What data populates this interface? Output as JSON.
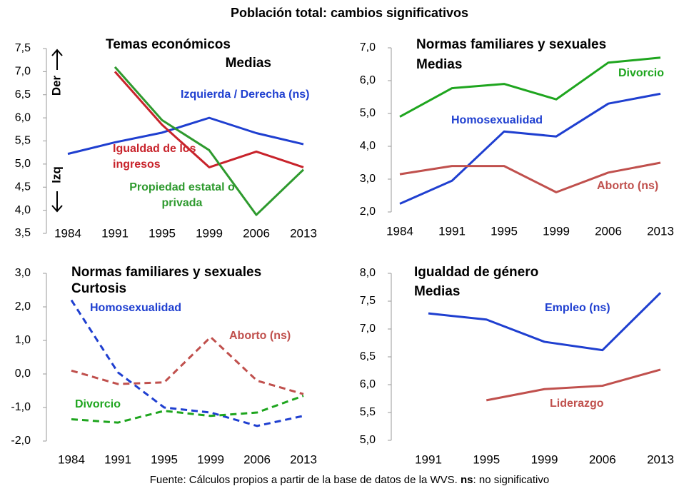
{
  "title": "Población total: cambios significativos",
  "source": [
    "Fuente: Cálculos propios a partir de la base de datos de la WVS. ",
    "ns",
    ": no significativo"
  ],
  "chart_data": [
    {
      "type": "line",
      "title": "Temas económicos",
      "subtitle": "Medias",
      "y_top_label": "Der",
      "y_bottom_label": "Izq",
      "categories": [
        "1984",
        "1991",
        "1995",
        "1999",
        "2006",
        "2013"
      ],
      "ylim": [
        3.5,
        7.5
      ],
      "yticks": [
        {
          "value": 3.5,
          "label": "3,5"
        },
        {
          "value": 4,
          "label": "4,0"
        },
        {
          "value": 4.5,
          "label": "4,5"
        },
        {
          "value": 5,
          "label": "5,0"
        },
        {
          "value": 5.5,
          "label": "5,5"
        },
        {
          "value": 6,
          "label": "6,0"
        },
        {
          "value": 6.5,
          "label": "6,5"
        },
        {
          "value": 7,
          "label": "7,0"
        },
        {
          "value": 7.5,
          "label": "7,5"
        }
      ],
      "dashed": false,
      "series": [
        {
          "name": "Izquierda / Derecha (ns)",
          "color": "#1f3fd0",
          "values": [
            5.22,
            5.47,
            5.68,
            6.0,
            5.67,
            5.43
          ]
        },
        {
          "name": "Igualdad de los ingresos",
          "color": "#c8232b",
          "values": [
            null,
            7.0,
            5.85,
            4.93,
            5.27,
            4.93
          ]
        },
        {
          "name": "Propiedad estatal o privada",
          "color": "#2e9a2e",
          "values": [
            null,
            7.1,
            5.95,
            5.3,
            3.9,
            4.88
          ]
        }
      ]
    },
    {
      "type": "line",
      "title": "Normas familiares y sexuales",
      "subtitle": "Medias",
      "categories": [
        "1984",
        "1991",
        "1995",
        "1999",
        "2006",
        "2013"
      ],
      "ylim": [
        2,
        7
      ],
      "yticks": [
        {
          "value": 2,
          "label": "2,0"
        },
        {
          "value": 3,
          "label": "3,0"
        },
        {
          "value": 4,
          "label": "4,0"
        },
        {
          "value": 5,
          "label": "5,0"
        },
        {
          "value": 6,
          "label": "6,0"
        },
        {
          "value": 7,
          "label": "7,0"
        }
      ],
      "dashed": false,
      "series": [
        {
          "name": "Divorcio",
          "color": "#1ea51e",
          "values": [
            4.9,
            5.77,
            5.9,
            5.43,
            6.55,
            6.7
          ]
        },
        {
          "name": "Homosexualidad",
          "color": "#1f3fd0",
          "values": [
            2.25,
            2.95,
            4.45,
            4.3,
            5.3,
            5.6
          ]
        },
        {
          "name": "Aborto (ns)",
          "color": "#c0504d",
          "values": [
            3.15,
            3.4,
            3.4,
            2.6,
            3.2,
            3.5
          ]
        }
      ]
    },
    {
      "type": "line",
      "title": "Normas familiares y sexuales",
      "subtitle": "Curtosis",
      "categories": [
        "1984",
        "1991",
        "1995",
        "1999",
        "2006",
        "2013"
      ],
      "ylim": [
        -2,
        3
      ],
      "yticks": [
        {
          "value": -2,
          "label": "-2,0"
        },
        {
          "value": -1,
          "label": "-1,0"
        },
        {
          "value": 0,
          "label": "0,0"
        },
        {
          "value": 1,
          "label": "1,0"
        },
        {
          "value": 2,
          "label": "2,0"
        },
        {
          "value": 3,
          "label": "3,0"
        }
      ],
      "dashed": true,
      "series": [
        {
          "name": "Homosexualidad",
          "color": "#1f3fd0",
          "values": [
            2.2,
            0.05,
            -1.0,
            -1.15,
            -1.55,
            -1.25
          ]
        },
        {
          "name": "Aborto (ns)",
          "color": "#c0504d",
          "values": [
            0.1,
            -0.3,
            -0.25,
            1.1,
            -0.2,
            -0.6
          ]
        },
        {
          "name": "Divorcio",
          "color": "#1ea51e",
          "values": [
            -1.35,
            -1.45,
            -1.1,
            -1.25,
            -1.15,
            -0.65
          ]
        }
      ]
    },
    {
      "type": "line",
      "title": "Igualdad de género",
      "subtitle": "Medias",
      "categories": [
        "1991",
        "1995",
        "1999",
        "2006",
        "2013"
      ],
      "ylim": [
        5,
        8
      ],
      "yticks": [
        {
          "value": 5,
          "label": "5,0"
        },
        {
          "value": 5.5,
          "label": "5,5"
        },
        {
          "value": 6,
          "label": "6,0"
        },
        {
          "value": 6.5,
          "label": "6,5"
        },
        {
          "value": 7,
          "label": "7,0"
        },
        {
          "value": 7.5,
          "label": "7,5"
        },
        {
          "value": 8,
          "label": "8,0"
        }
      ],
      "dashed": false,
      "series": [
        {
          "name": "Empleo (ns)",
          "color": "#1f3fd0",
          "values": [
            7.28,
            7.17,
            6.77,
            6.62,
            7.65
          ]
        },
        {
          "name": "Liderazgo",
          "color": "#c0504d",
          "values": [
            null,
            5.72,
            5.92,
            5.98,
            6.27
          ]
        }
      ]
    }
  ]
}
